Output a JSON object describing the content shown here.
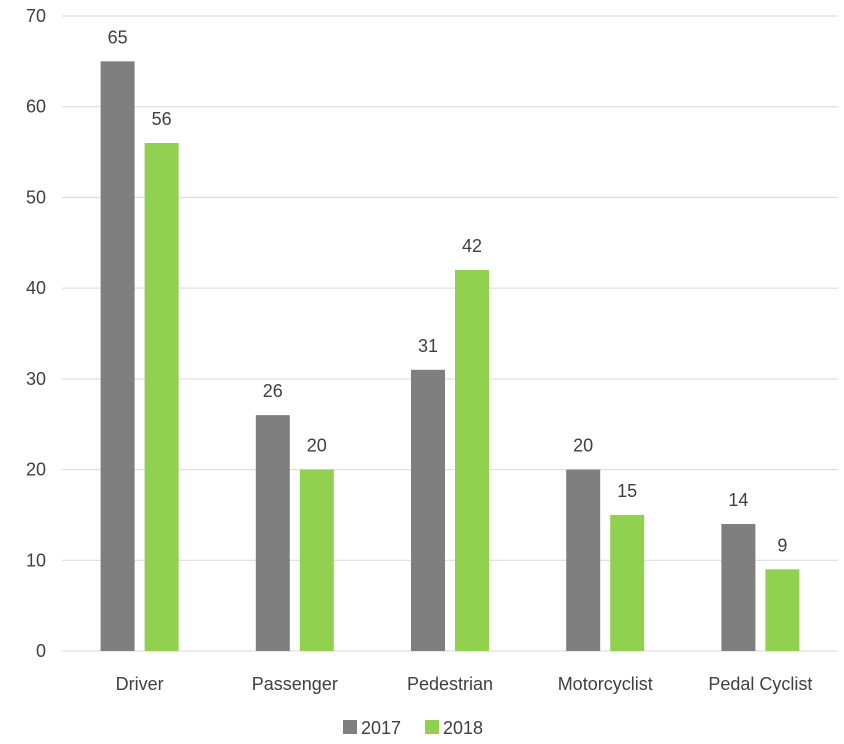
{
  "chart_data": {
    "type": "bar",
    "categories": [
      "Driver",
      "Passenger",
      "Pedestrian",
      "Motorcyclist",
      "Pedal Cyclist"
    ],
    "series": [
      {
        "name": "2017",
        "values": [
          65,
          26,
          31,
          20,
          14
        ],
        "color": "#7f7f7f"
      },
      {
        "name": "2018",
        "values": [
          56,
          20,
          42,
          15,
          9
        ],
        "color": "#92d050"
      }
    ],
    "ylim": [
      0,
      70
    ],
    "yticks": [
      0,
      10,
      20,
      30,
      40,
      50,
      60,
      70
    ],
    "grid": true,
    "data_labels": true,
    "legend_position": "bottom",
    "gridline_color": "#d9d9d9"
  }
}
